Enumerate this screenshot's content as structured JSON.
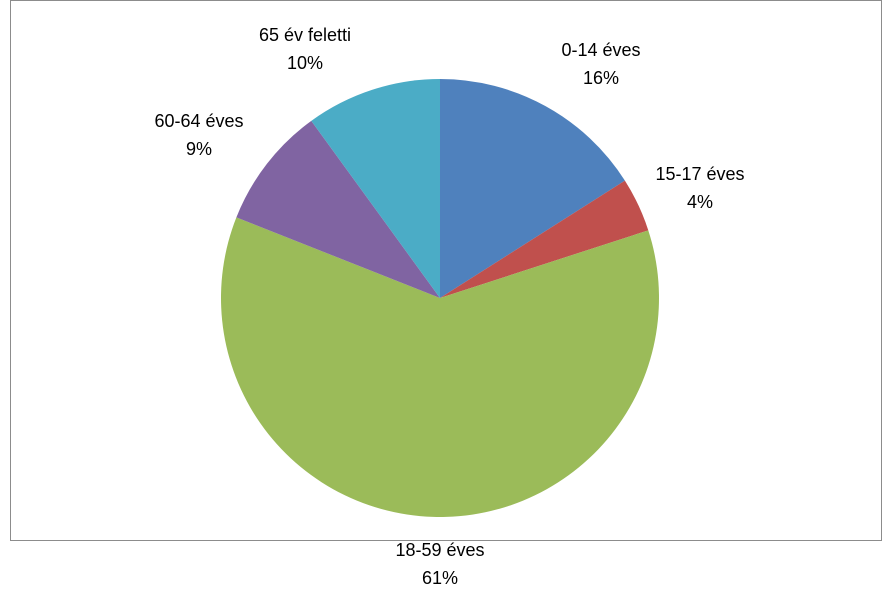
{
  "chart_data": {
    "type": "pie",
    "title": "",
    "slices": [
      {
        "category": "0-14 éves",
        "value": 16,
        "percent_label": "16%",
        "color": "#4F81BD"
      },
      {
        "category": "15-17 éves",
        "value": 4,
        "percent_label": "4%",
        "color": "#C0504D"
      },
      {
        "category": "18-59 éves",
        "value": 61,
        "percent_label": "61%",
        "color": "#9BBB59"
      },
      {
        "category": "60-64 éves",
        "value": 9,
        "percent_label": "9%",
        "color": "#8064A2"
      },
      {
        "category": "65 év feletti",
        "value": 10,
        "percent_label": "10%",
        "color": "#4BACC6"
      }
    ],
    "start_angle": "12 o'clock",
    "direction": "clockwise",
    "legend": "none",
    "data_labels": "outside, category name and percentage"
  }
}
